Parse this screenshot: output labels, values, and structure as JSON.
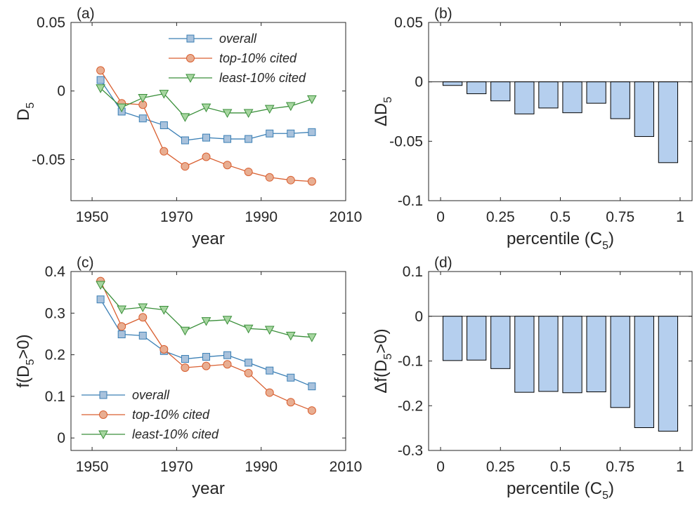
{
  "colors": {
    "overall_line": "#3a7fb5",
    "overall_marker_fill": "#a9c2dc",
    "top_line": "#d95f30",
    "top_marker_fill": "#e8ae92",
    "least_line": "#3a8f3a",
    "least_marker_fill": "#a7d6a0",
    "bar_fill": "#b5cfee",
    "bar_stroke": "#000000"
  },
  "chart_data": [
    {
      "id": "a",
      "panel_label": "(a)",
      "type": "line",
      "xlabel": "year",
      "ylabel": "D",
      "ylabel_sub": "5",
      "xlim": [
        1945,
        2010
      ],
      "ylim": [
        -0.08,
        0.05
      ],
      "xticks": [
        1950,
        1970,
        1990,
        2010
      ],
      "xtick_labels": [
        "1950",
        "1970",
        "1990",
        "2010"
      ],
      "yticks": [
        0.05,
        0,
        -0.05
      ],
      "ytick_labels": [
        "0.05",
        "0",
        "-0.05"
      ],
      "legend_position": "top-right",
      "x": [
        1952,
        1957,
        1962,
        1967,
        1972,
        1977,
        1982,
        1987,
        1992,
        1997,
        2002
      ],
      "series": [
        {
          "name": "overall",
          "marker": "square",
          "values": [
            0.008,
            -0.015,
            -0.02,
            -0.025,
            -0.036,
            -0.034,
            -0.035,
            -0.035,
            -0.031,
            -0.031,
            -0.03
          ]
        },
        {
          "name": "top-10% cited",
          "marker": "circle",
          "values": [
            0.015,
            -0.009,
            -0.01,
            -0.044,
            -0.055,
            -0.048,
            -0.054,
            -0.059,
            -0.063,
            -0.065,
            -0.066
          ]
        },
        {
          "name": "least-10% cited",
          "marker": "triangle-down",
          "values": [
            0.002,
            -0.012,
            -0.005,
            -0.002,
            -0.019,
            -0.012,
            -0.016,
            -0.016,
            -0.013,
            -0.011,
            -0.006
          ]
        }
      ]
    },
    {
      "id": "b",
      "panel_label": "(b)",
      "type": "bar",
      "xlabel": "percentile (C",
      "xlabel_sub": "5",
      "xlabel_end": ")",
      "ylabel": "ΔD",
      "ylabel_sub": "5",
      "xlim": [
        -0.05,
        1.05
      ],
      "ylim": [
        -0.1,
        0.05
      ],
      "xticks": [
        0,
        0.25,
        0.5,
        0.75,
        1
      ],
      "xtick_labels": [
        "0",
        "0.25",
        "0.5",
        "0.75",
        "1"
      ],
      "yticks": [
        0.05,
        0,
        -0.05,
        -0.1
      ],
      "ytick_labels": [
        "0.05",
        "0",
        "-0.05",
        "-0.1"
      ],
      "bar_width": 0.08,
      "x": [
        0.05,
        0.15,
        0.25,
        0.35,
        0.45,
        0.55,
        0.65,
        0.75,
        0.85,
        0.95
      ],
      "values": [
        -0.003,
        -0.01,
        -0.016,
        -0.027,
        -0.022,
        -0.026,
        -0.018,
        -0.031,
        -0.046,
        -0.068
      ]
    },
    {
      "id": "c",
      "panel_label": "(c)",
      "type": "line",
      "xlabel": "year",
      "ylabel": "f(D",
      "ylabel_sub": "5",
      "ylabel_end": ">0)",
      "xlim": [
        1945,
        2010
      ],
      "ylim": [
        -0.03,
        0.4
      ],
      "xticks": [
        1950,
        1970,
        1990,
        2010
      ],
      "xtick_labels": [
        "1950",
        "1970",
        "1990",
        "2010"
      ],
      "yticks": [
        0.4,
        0.3,
        0.2,
        0.1,
        0
      ],
      "ytick_labels": [
        "0.4",
        "0.3",
        "0.2",
        "0.1",
        "0"
      ],
      "legend_position": "bottom-left",
      "x": [
        1952,
        1957,
        1962,
        1967,
        1972,
        1977,
        1982,
        1987,
        1992,
        1997,
        2002
      ],
      "series": [
        {
          "name": "overall",
          "marker": "square",
          "values": [
            0.333,
            0.249,
            0.246,
            0.209,
            0.19,
            0.195,
            0.199,
            0.181,
            0.162,
            0.145,
            0.124
          ]
        },
        {
          "name": "top-10% cited",
          "marker": "circle",
          "values": [
            0.377,
            0.268,
            0.29,
            0.213,
            0.169,
            0.173,
            0.177,
            0.156,
            0.109,
            0.086,
            0.066
          ]
        },
        {
          "name": "least-10% cited",
          "marker": "triangle-down",
          "values": [
            0.368,
            0.309,
            0.314,
            0.308,
            0.258,
            0.281,
            0.284,
            0.263,
            0.26,
            0.246,
            0.242
          ]
        }
      ]
    },
    {
      "id": "d",
      "panel_label": "(d)",
      "type": "bar",
      "xlabel": "percentile (C",
      "xlabel_sub": "5",
      "xlabel_end": ")",
      "ylabel": "Δf(D",
      "ylabel_sub": "5",
      "ylabel_end": ">0)",
      "xlim": [
        -0.05,
        1.05
      ],
      "ylim": [
        -0.3,
        0.1
      ],
      "xticks": [
        0,
        0.25,
        0.5,
        0.75,
        1
      ],
      "xtick_labels": [
        "0",
        "0.25",
        "0.5",
        "0.75",
        "1"
      ],
      "yticks": [
        0.1,
        0,
        -0.1,
        -0.2,
        -0.3
      ],
      "ytick_labels": [
        "0.1",
        "0",
        "-0.1",
        "-0.2",
        "-0.3"
      ],
      "bar_width": 0.08,
      "x": [
        0.05,
        0.15,
        0.25,
        0.35,
        0.45,
        0.55,
        0.65,
        0.75,
        0.85,
        0.95
      ],
      "values": [
        -0.099,
        -0.098,
        -0.117,
        -0.17,
        -0.168,
        -0.171,
        -0.169,
        -0.204,
        -0.249,
        -0.257
      ]
    }
  ]
}
